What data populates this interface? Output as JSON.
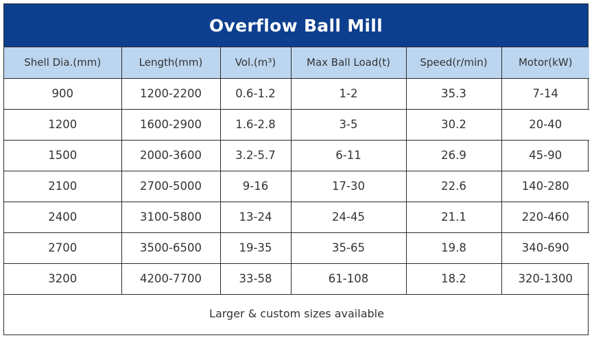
{
  "title": "Overflow Ball Mill",
  "columns": [
    "Shell Dia.(mm)",
    "Length(mm)",
    "Vol.(m³)",
    "Max Ball Load(t)",
    "Speed(r/min)",
    "Motor(kW)"
  ],
  "rows": [
    [
      "900",
      "1200-2200",
      "0.6-1.2",
      "1-2",
      "35.3",
      "7-14"
    ],
    [
      "1200",
      "1600-2900",
      "1.6-2.8",
      "3-5",
      "30.2",
      "20-40"
    ],
    [
      "1500",
      "2000-3600",
      "3.2-5.7",
      "6-11",
      "26.9",
      "45-90"
    ],
    [
      "2100",
      "2700-5000",
      "9-16",
      "17-30",
      "22.6",
      "140-280"
    ],
    [
      "2400",
      "3100-5800",
      "13-24",
      "24-45",
      "21.1",
      "220-460"
    ],
    [
      "2700",
      "3500-6500",
      "19-35",
      "35-65",
      "19.8",
      "340-690"
    ],
    [
      "3200",
      "4200-7700",
      "33-58",
      "61-108",
      "18.2",
      "320-1300"
    ]
  ],
  "footer": "Larger & custom sizes available",
  "colors": {
    "title_bg": "#0d3f8e",
    "header_bg": "#bcd6f0",
    "text": "#333333"
  }
}
